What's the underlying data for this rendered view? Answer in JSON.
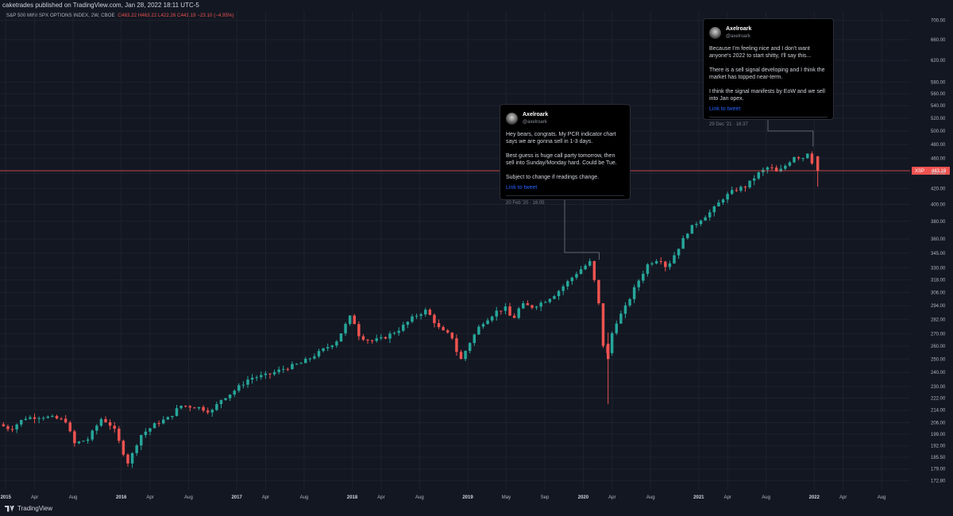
{
  "header": {
    "published": "caketrades published on TradingView.com, Jan 28, 2022 18:11 UTC-5",
    "symbol": "S&P 500 MINI SPX OPTIONS INDEX, 2W, CBOE",
    "ohlc": "O463.22 H463.22 L422.26 C443.19 −23.10 (−4.95%)"
  },
  "price_tag": {
    "label": "XSP",
    "value": "443.19"
  },
  "colors": {
    "up": "#26a69a",
    "down": "#ef5350",
    "background": "#131722",
    "grid": "#1e222d",
    "text": "#b2b5be"
  },
  "footer": {
    "logo_text": "TradingView"
  },
  "tweets": [
    {
      "name": "Axelroark",
      "handle": "@axelroark",
      "paragraphs": [
        "Hey bears, congrats. My PCR indicator chart says we are gonna sell in 1-3 days.",
        "Best guess is huge call party tomorrow, then sell into Sunday/Monday hard. Could be Tue.",
        "Subject to change if readings change."
      ],
      "link": "Link to tweet",
      "date": "20 Feb '20 · 16:05"
    },
    {
      "name": "Axelroark",
      "handle": "@axelroark",
      "paragraphs": [
        "Because I'm feeling nice and I don't want anyone's 2022 to start shitty, I'll say this...",
        "There is a sell signal developing and I think the market has topped near-term.",
        "I think the signal manifests by EoW and we sell into Jan opex."
      ],
      "link": "Link to tweet",
      "date": "29 Dec '21 · 16:37"
    }
  ],
  "chart_data": {
    "type": "candlestick",
    "interval": "2W",
    "y_scale": "log",
    "ylim": [
      168,
      720
    ],
    "y_ticks": [
      700,
      660,
      620,
      580,
      560,
      540,
      520,
      500,
      480,
      460,
      440,
      420,
      400,
      380,
      360,
      345,
      330,
      318,
      306,
      294,
      282,
      270,
      260,
      250,
      240,
      230,
      222,
      214,
      206,
      199,
      192,
      185.5,
      179,
      172.8
    ],
    "y_tick_labels": [
      "700.00",
      "660.00",
      "620.00",
      "580.00",
      "560.00",
      "540.00",
      "520.00",
      "500.00",
      "480.00",
      "460.00",
      "440.00",
      "420.00",
      "400.00",
      "380.00",
      "360.00",
      "345.00",
      "330.00",
      "318.00",
      "306.00",
      "294.00",
      "282.00",
      "270.00",
      "260.00",
      "250.00",
      "240.00",
      "230.00",
      "222.00",
      "214.00",
      "206.00",
      "199.00",
      "192.00",
      "185.50",
      "179.00",
      "172.80"
    ],
    "x_labels": [
      {
        "t": 2015.0,
        "label": "2015",
        "major": true
      },
      {
        "t": 2015.25,
        "label": "Apr",
        "major": false
      },
      {
        "t": 2015.583,
        "label": "Aug",
        "major": false
      },
      {
        "t": 2016.0,
        "label": "2016",
        "major": true
      },
      {
        "t": 2016.25,
        "label": "Apr",
        "major": false
      },
      {
        "t": 2016.583,
        "label": "Aug",
        "major": false
      },
      {
        "t": 2017.0,
        "label": "2017",
        "major": true
      },
      {
        "t": 2017.25,
        "label": "Apr",
        "major": false
      },
      {
        "t": 2017.583,
        "label": "Aug",
        "major": false
      },
      {
        "t": 2018.0,
        "label": "2018",
        "major": true
      },
      {
        "t": 2018.25,
        "label": "Apr",
        "major": false
      },
      {
        "t": 2018.583,
        "label": "Aug",
        "major": false
      },
      {
        "t": 2019.0,
        "label": "2019",
        "major": true
      },
      {
        "t": 2019.333,
        "label": "May",
        "major": false
      },
      {
        "t": 2019.667,
        "label": "Sep",
        "major": false
      },
      {
        "t": 2020.0,
        "label": "2020",
        "major": true
      },
      {
        "t": 2020.25,
        "label": "Apr",
        "major": false
      },
      {
        "t": 2020.583,
        "label": "Aug",
        "major": false
      },
      {
        "t": 2021.0,
        "label": "2021",
        "major": true
      },
      {
        "t": 2021.25,
        "label": "Apr",
        "major": false
      },
      {
        "t": 2021.583,
        "label": "Aug",
        "major": false
      },
      {
        "t": 2022.0,
        "label": "2022",
        "major": true
      },
      {
        "t": 2022.25,
        "label": "Apr",
        "major": false
      },
      {
        "t": 2022.583,
        "label": "Aug",
        "major": false
      }
    ],
    "xlim": [
      2014.95,
      2022.83
    ],
    "last_price": 443.19,
    "tweet_anchors": [
      {
        "date": "2020-02-20",
        "t": 2020.137,
        "price": 338
      },
      {
        "date": "2021-12-29",
        "t": 2021.99,
        "price": 477
      }
    ],
    "anchor_points": [
      [
        2014.98,
        205
      ],
      [
        2015.08,
        202
      ],
      [
        2015.2,
        209
      ],
      [
        2015.35,
        210
      ],
      [
        2015.45,
        209
      ],
      [
        2015.57,
        207
      ],
      [
        2015.62,
        193
      ],
      [
        2015.75,
        196
      ],
      [
        2015.87,
        209
      ],
      [
        2015.97,
        203
      ],
      [
        2016.05,
        189
      ],
      [
        2016.1,
        182
      ],
      [
        2016.2,
        198
      ],
      [
        2016.35,
        206
      ],
      [
        2016.45,
        209
      ],
      [
        2016.55,
        217
      ],
      [
        2016.7,
        216
      ],
      [
        2016.82,
        213
      ],
      [
        2016.9,
        221
      ],
      [
        2017.0,
        226
      ],
      [
        2017.15,
        236
      ],
      [
        2017.3,
        238
      ],
      [
        2017.45,
        243
      ],
      [
        2017.6,
        247
      ],
      [
        2017.75,
        255
      ],
      [
        2017.9,
        264
      ],
      [
        2018.03,
        286
      ],
      [
        2018.1,
        268
      ],
      [
        2018.2,
        264
      ],
      [
        2018.3,
        266
      ],
      [
        2018.45,
        274
      ],
      [
        2018.58,
        285
      ],
      [
        2018.68,
        290
      ],
      [
        2018.8,
        273
      ],
      [
        2018.9,
        268
      ],
      [
        2018.97,
        248
      ],
      [
        2019.05,
        262
      ],
      [
        2019.15,
        278
      ],
      [
        2019.3,
        290
      ],
      [
        2019.38,
        292
      ],
      [
        2019.42,
        280
      ],
      [
        2019.5,
        295
      ],
      [
        2019.6,
        293
      ],
      [
        2019.7,
        298
      ],
      [
        2019.8,
        305
      ],
      [
        2019.92,
        318
      ],
      [
        2020.0,
        327
      ],
      [
        2020.1,
        336
      ],
      [
        2020.17,
        298
      ],
      [
        2020.2,
        265
      ],
      [
        2020.24,
        250
      ],
      [
        2020.3,
        276
      ],
      [
        2020.4,
        292
      ],
      [
        2020.5,
        314
      ],
      [
        2020.6,
        334
      ],
      [
        2020.7,
        340
      ],
      [
        2020.76,
        330
      ],
      [
        2020.85,
        348
      ],
      [
        2020.95,
        370
      ],
      [
        2021.05,
        382
      ],
      [
        2021.15,
        392
      ],
      [
        2021.25,
        408
      ],
      [
        2021.35,
        418
      ],
      [
        2021.45,
        423
      ],
      [
        2021.55,
        439
      ],
      [
        2021.65,
        449
      ],
      [
        2021.72,
        440
      ],
      [
        2021.8,
        452
      ],
      [
        2021.88,
        466
      ],
      [
        2021.93,
        458
      ],
      [
        2021.97,
        470
      ],
      [
        2022.0,
        466
      ],
      [
        2022.04,
        443.19
      ]
    ],
    "end_candle": {
      "o": 463.22,
      "h": 463.22,
      "l": 422.26,
      "c": 443.19
    }
  }
}
